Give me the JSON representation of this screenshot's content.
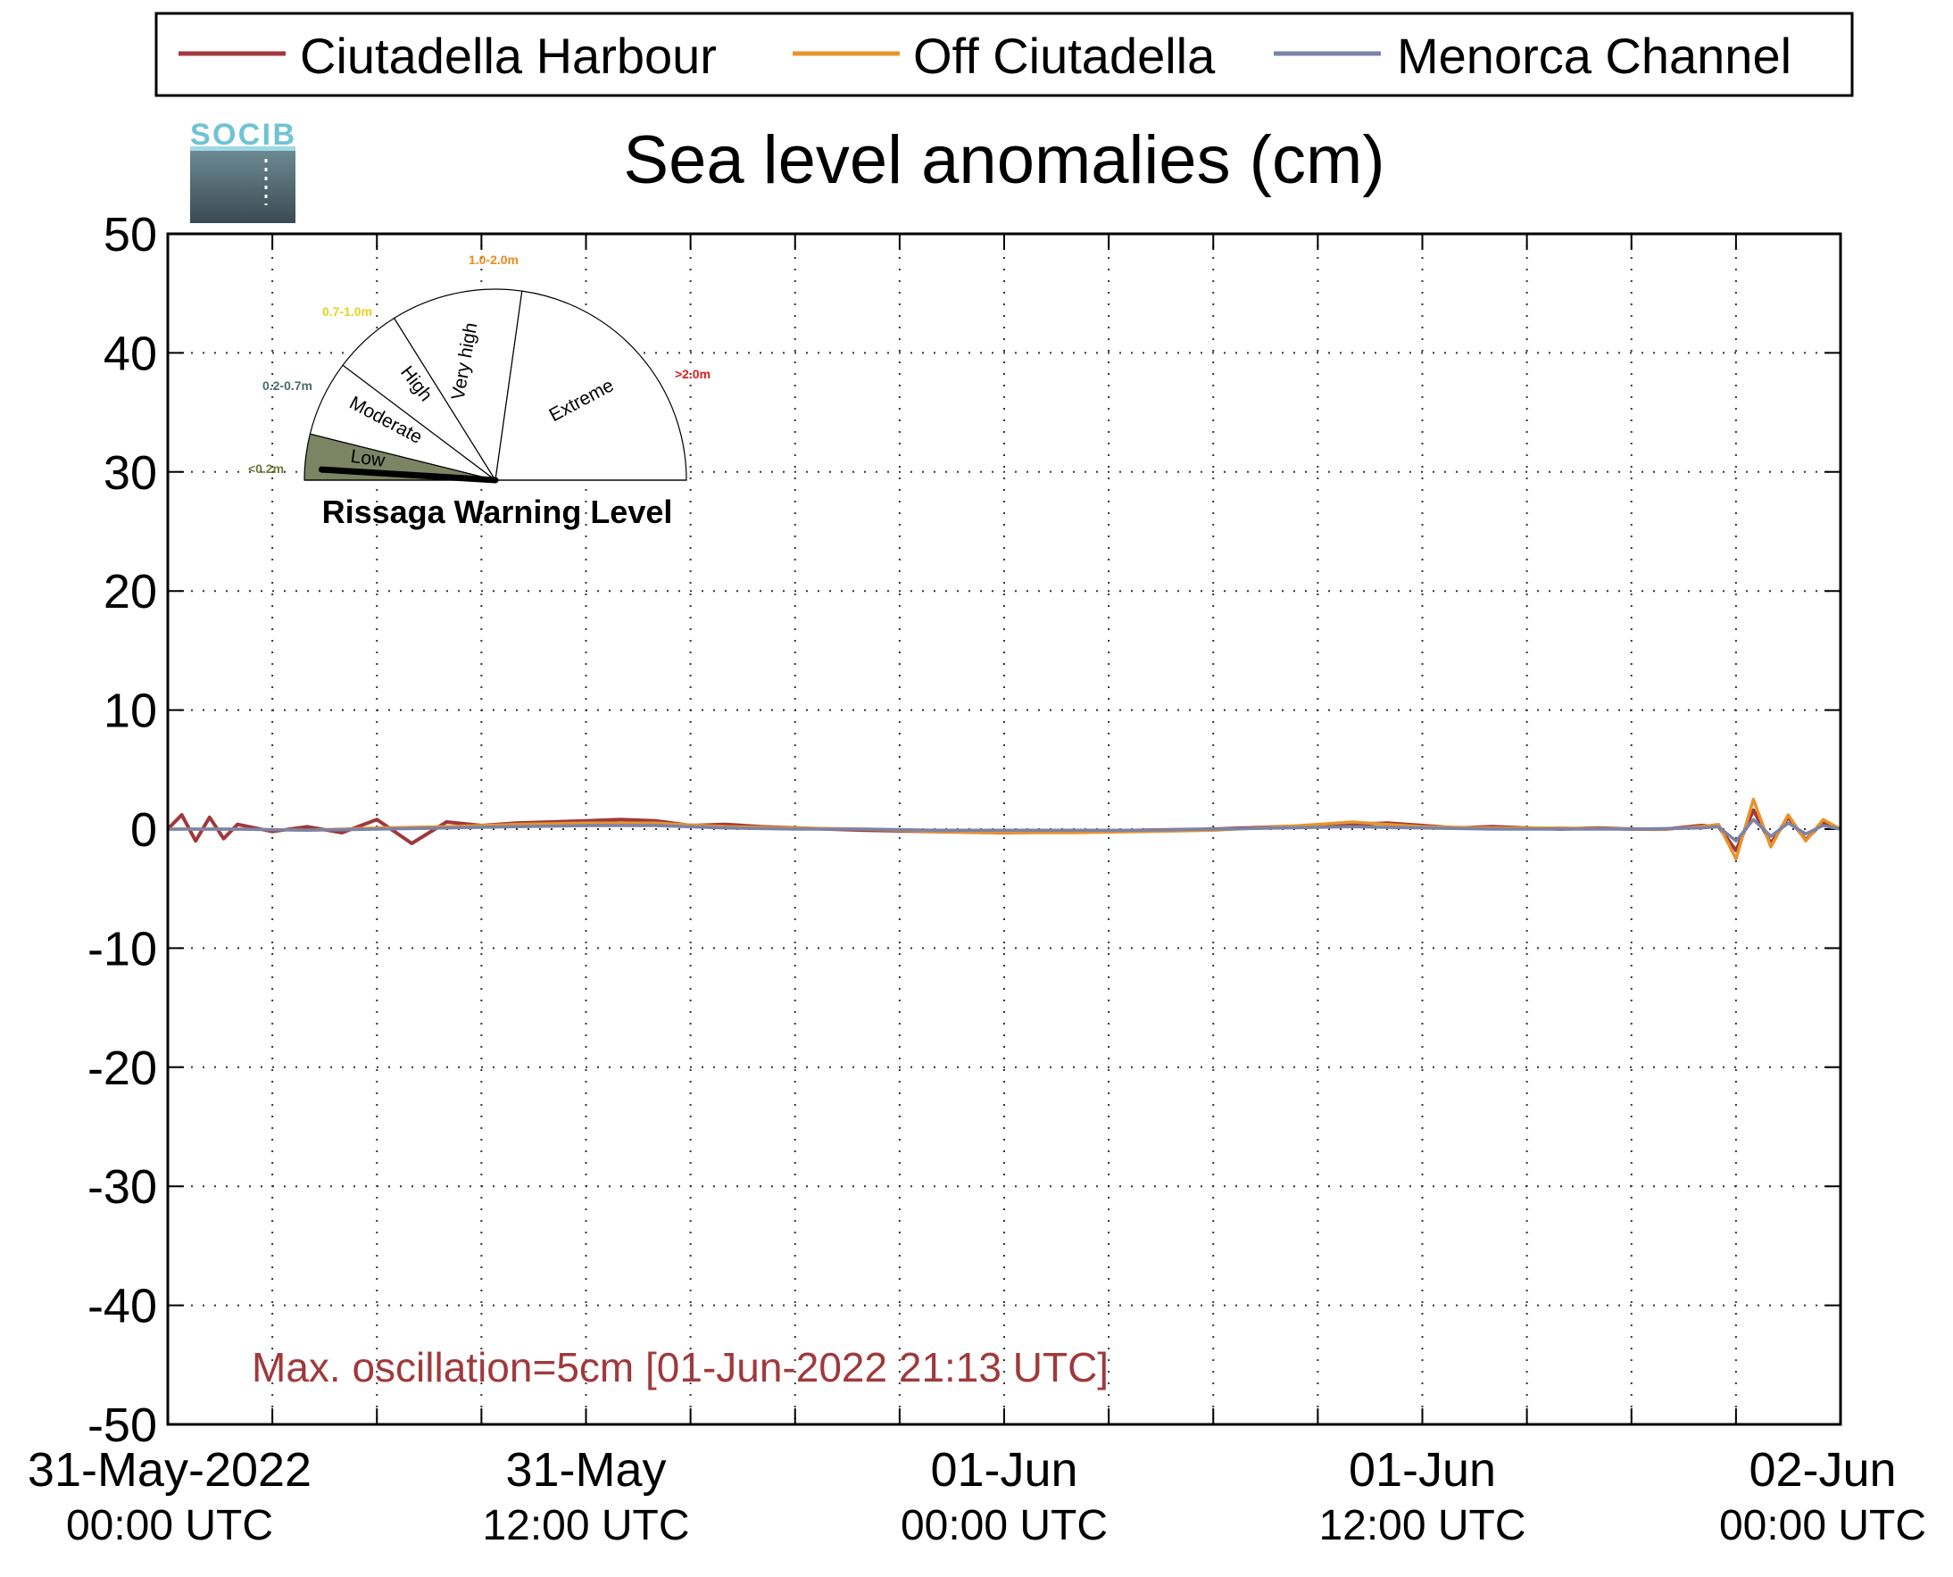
{
  "chart_data": {
    "type": "line",
    "title": "Sea level anomalies (cm)",
    "ylabel": "",
    "xlabel": "",
    "ylim": [
      -50,
      50
    ],
    "yticks": [
      50,
      40,
      30,
      20,
      10,
      0,
      -10,
      -20,
      -30,
      -40,
      -50
    ],
    "xlim_hours": [
      0,
      48
    ],
    "xticks": [
      {
        "hour": 0,
        "line1": "31-May-2022",
        "line2": "00:00 UTC"
      },
      {
        "hour": 12,
        "line1": "31-May",
        "line2": "12:00 UTC"
      },
      {
        "hour": 24,
        "line1": "01-Jun",
        "line2": "00:00 UTC"
      },
      {
        "hour": 36,
        "line1": "01-Jun",
        "line2": "12:00 UTC"
      },
      {
        "hour": 48,
        "line1": "02-Jun",
        "line2": "00:00 UTC"
      }
    ],
    "grid": true,
    "legend_position": "top",
    "series": [
      {
        "name": "Ciutadella Harbour",
        "color": "#a0393b",
        "x": [
          0,
          0.4,
          0.8,
          1.2,
          1.6,
          2,
          3,
          4,
          5,
          6,
          7,
          8,
          9,
          10,
          11,
          12,
          13,
          14,
          15,
          16,
          17,
          18,
          19,
          20,
          22,
          24,
          26,
          28,
          30,
          32,
          33,
          34,
          35,
          36,
          37,
          38,
          39,
          40,
          41,
          42,
          43,
          44,
          44.5,
          45,
          45.5,
          46,
          46.5,
          47,
          47.5,
          48
        ],
        "y": [
          0,
          1.2,
          -1.0,
          1.0,
          -0.8,
          0.4,
          -0.2,
          0.2,
          -0.3,
          0.8,
          -1.2,
          0.6,
          0.3,
          0.5,
          0.6,
          0.7,
          0.8,
          0.7,
          0.3,
          0.4,
          0.2,
          0.1,
          0,
          -0.1,
          -0.2,
          -0.3,
          -0.2,
          -0.1,
          0,
          0.2,
          0.3,
          0.4,
          0.5,
          0.3,
          0.1,
          0.2,
          0.1,
          0,
          0.1,
          0,
          0,
          0.3,
          0.2,
          -1.8,
          1.6,
          -1.2,
          1.0,
          -0.9,
          0.6,
          0
        ]
      },
      {
        "name": "Off Ciutadella",
        "color": "#e8932b",
        "x": [
          0,
          2,
          4,
          6,
          8,
          10,
          12,
          14,
          16,
          18,
          20,
          22,
          24,
          26,
          28,
          30,
          32,
          33,
          34,
          35,
          36,
          38,
          40,
          42,
          43,
          44,
          44.5,
          45,
          45.5,
          46,
          46.5,
          47,
          47.5,
          48
        ],
        "y": [
          0,
          0,
          -0.1,
          0.1,
          0.2,
          0.4,
          0.5,
          0.5,
          0.2,
          0.1,
          0,
          -0.2,
          -0.3,
          -0.3,
          -0.2,
          -0.1,
          0.2,
          0.4,
          0.6,
          0.4,
          0.2,
          0.1,
          0.1,
          0,
          0,
          0.2,
          0.4,
          -2.5,
          2.5,
          -1.5,
          1.2,
          -1.0,
          0.8,
          0
        ]
      },
      {
        "name": "Menorca Channel",
        "color": "#7a84a8",
        "x": [
          0,
          2,
          4,
          6,
          8,
          10,
          12,
          14,
          16,
          18,
          20,
          22,
          24,
          26,
          28,
          30,
          32,
          34,
          36,
          38,
          40,
          42,
          44,
          44.5,
          45,
          45.5,
          46,
          46.5,
          47,
          47.5,
          48
        ],
        "y": [
          0,
          0,
          -0.1,
          0,
          0.1,
          0.2,
          0.3,
          0.3,
          0.1,
          0,
          0,
          -0.1,
          -0.1,
          -0.1,
          -0.1,
          0,
          0.1,
          0.2,
          0.1,
          0,
          0,
          0,
          0.1,
          0.2,
          -1.0,
          0.8,
          -0.6,
          0.5,
          -0.4,
          0.3,
          0
        ]
      }
    ],
    "annotation": "Max. oscillation=5cm [01-Jun-2022 21:13 UTC]"
  },
  "legend": {
    "items": [
      {
        "label": "Ciutadella Harbour",
        "color": "#a0393b"
      },
      {
        "label": "Off Ciutadella",
        "color": "#e8932b"
      },
      {
        "label": "Menorca Channel",
        "color": "#7a84a8"
      }
    ]
  },
  "logo": {
    "text": "SOCIB"
  },
  "gauge": {
    "title": "Rissaga Warning Level",
    "current_level": "Low",
    "sectors": [
      {
        "label": "Low",
        "range": "<0.2m",
        "range_color": "#6b7a3a",
        "fill": "#7c8463"
      },
      {
        "label": "Moderate",
        "range": "0.2-0.7m",
        "range_color": "#4a6b6b",
        "fill": "#ffffff"
      },
      {
        "label": "High",
        "range": "0.7-1.0m",
        "range_color": "#e6d21e",
        "fill": "#ffffff"
      },
      {
        "label": "Very high",
        "range": "1.0-2.0m",
        "range_color": "#f08a1c",
        "fill": "#ffffff"
      },
      {
        "label": "Extreme",
        "range": ">2.0m",
        "range_color": "#e01e1e",
        "fill": "#ffffff"
      }
    ]
  }
}
